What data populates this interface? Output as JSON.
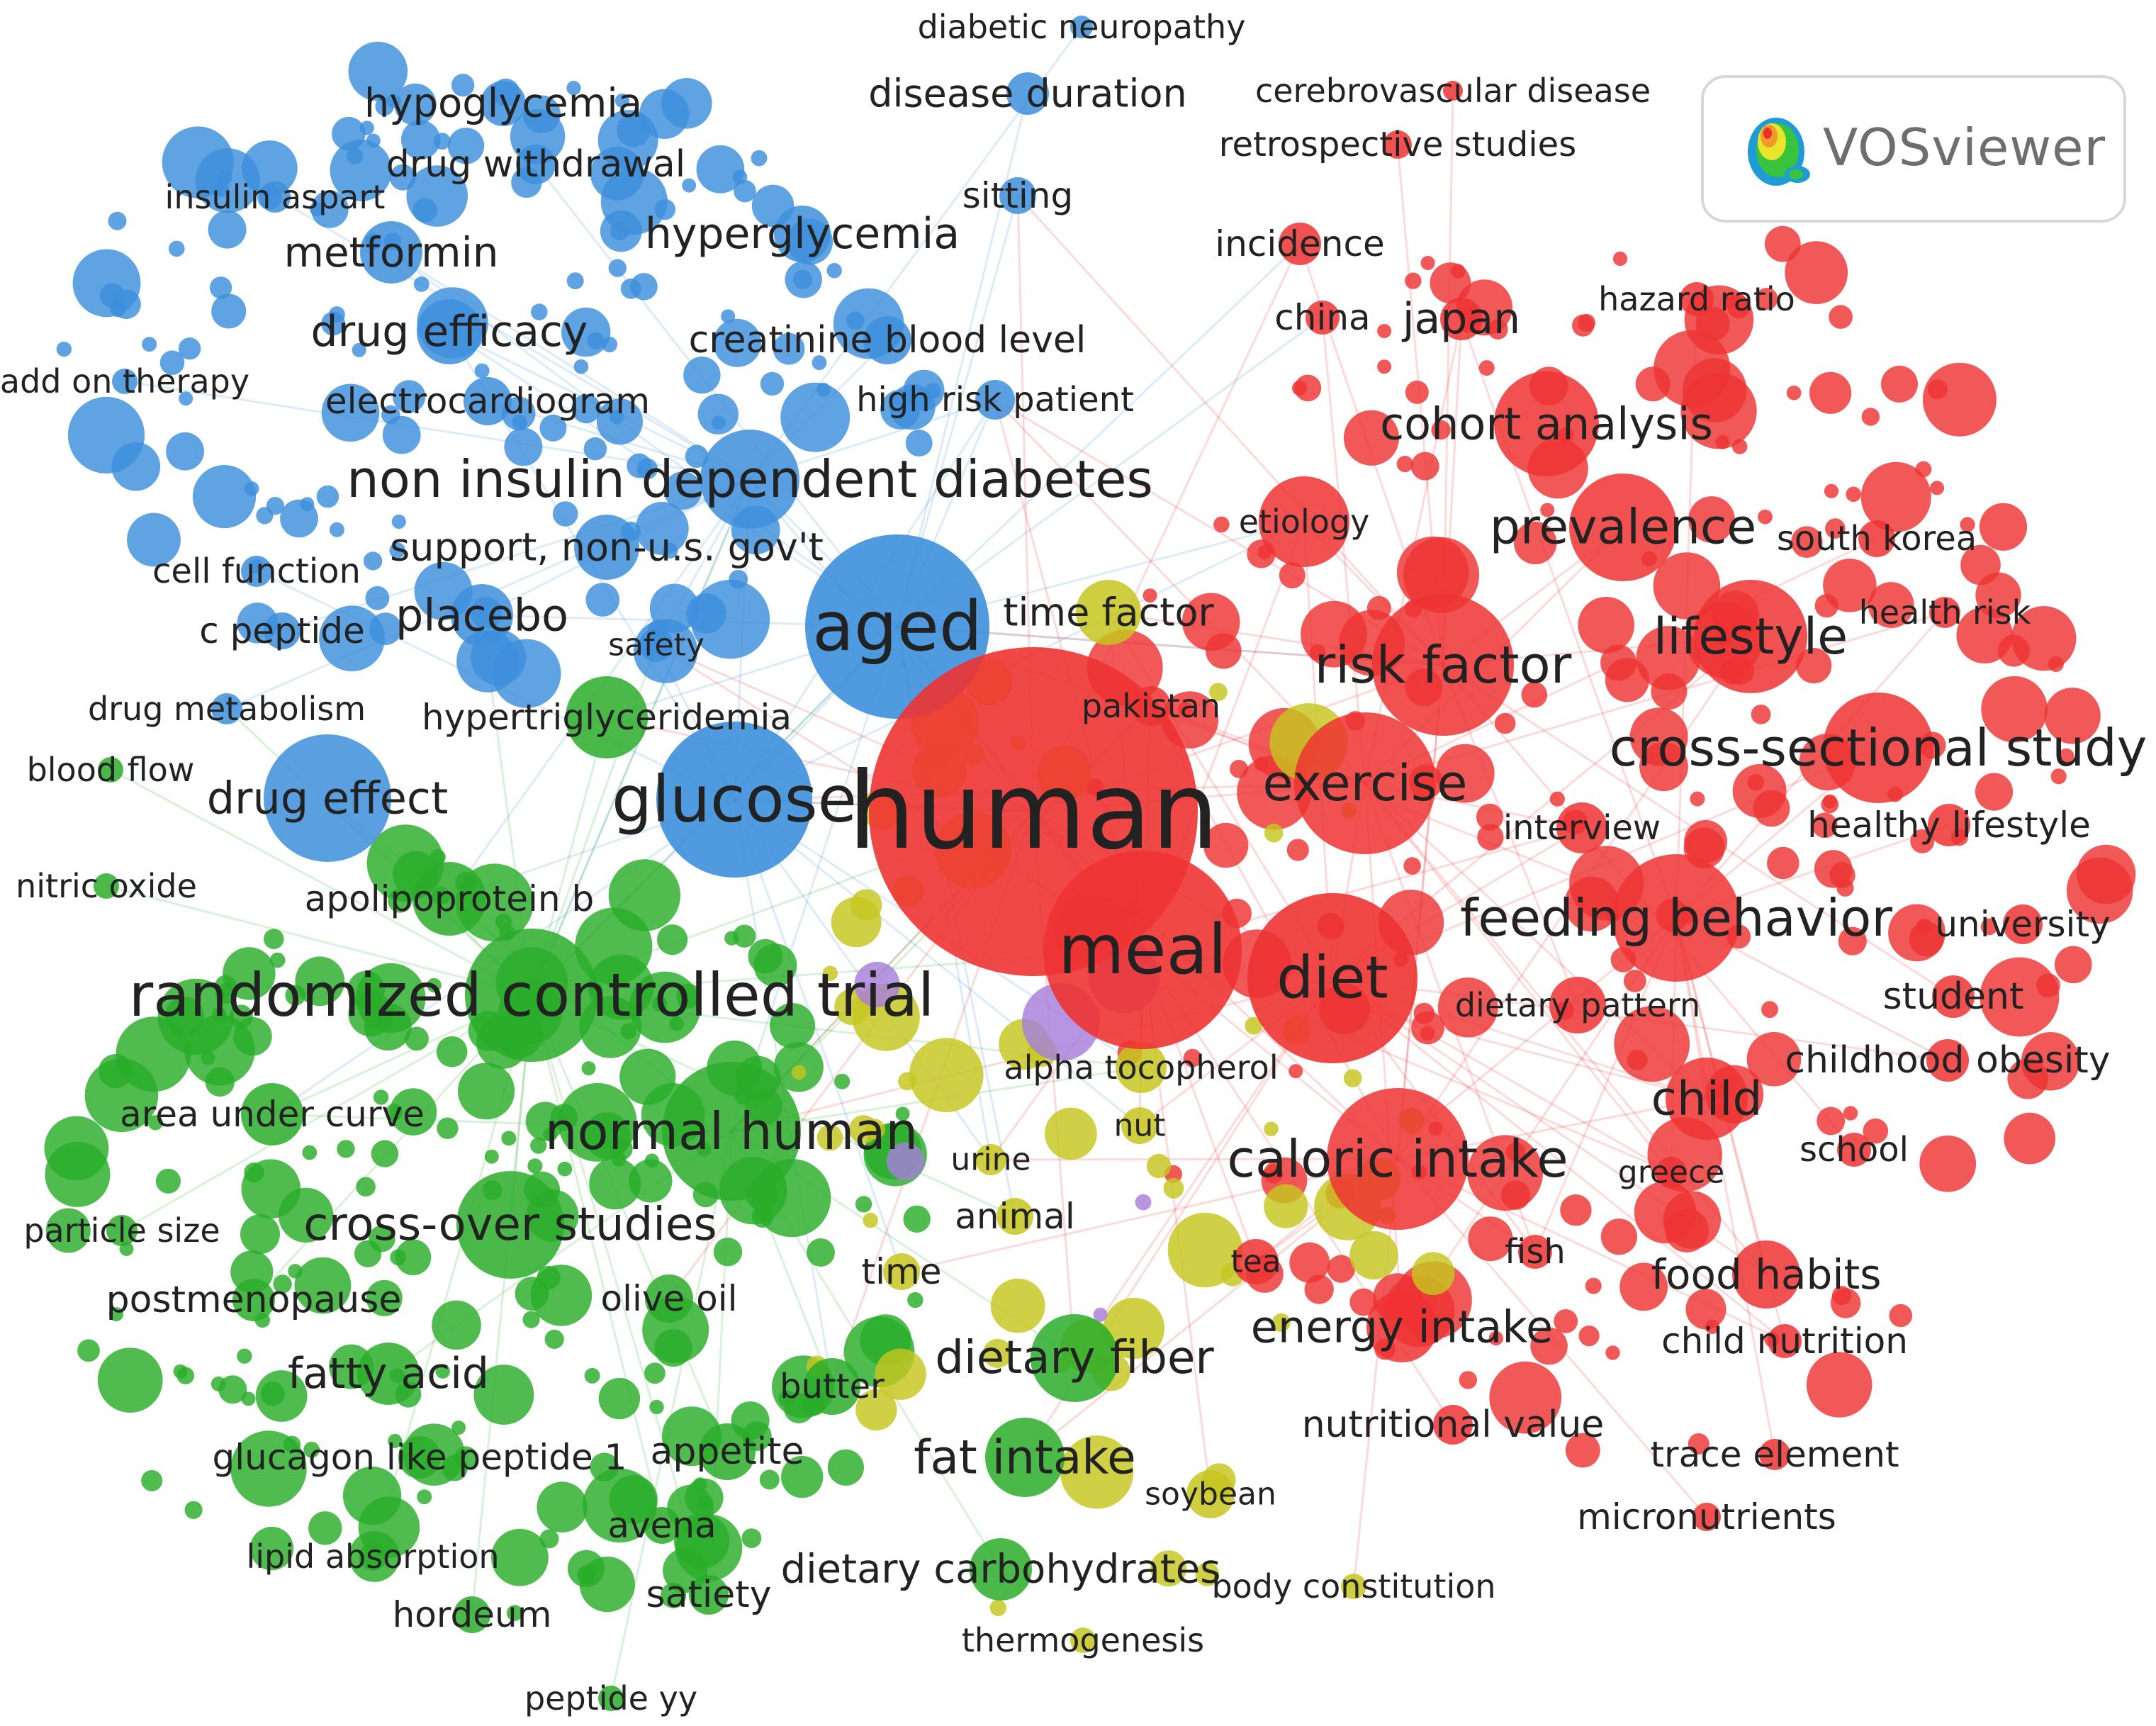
{
  "colors": {
    "red": "#ee3333",
    "blue": "#3d8fdc",
    "green": "#2aad2a",
    "yellow": "#c6c61e",
    "purple": "#a67fdb",
    "label": "#222222"
  },
  "logo": {
    "text": "VOSviewer",
    "icon": "vosviewer-density-logo-icon"
  },
  "terms": [
    {
      "id": "human",
      "label": "human",
      "cluster": "red"
    },
    {
      "id": "meal",
      "label": "meal",
      "cluster": "red"
    },
    {
      "id": "diet",
      "label": "diet",
      "cluster": "red"
    },
    {
      "id": "risk_factor",
      "label": "risk factor",
      "cluster": "red"
    },
    {
      "id": "exercise",
      "label": "exercise",
      "cluster": "red"
    },
    {
      "id": "feeding_behavior",
      "label": "feeding behavior",
      "cluster": "red"
    },
    {
      "id": "caloric_intake",
      "label": "caloric intake",
      "cluster": "red"
    },
    {
      "id": "cross_sectional_study",
      "label": "cross-sectional study",
      "cluster": "red"
    },
    {
      "id": "lifestyle",
      "label": "lifestyle",
      "cluster": "red"
    },
    {
      "id": "prevalence",
      "label": "prevalence",
      "cluster": "red"
    },
    {
      "id": "cohort_analysis",
      "label": "cohort analysis",
      "cluster": "red"
    },
    {
      "id": "japan",
      "label": "japan",
      "cluster": "red"
    },
    {
      "id": "china",
      "label": "china",
      "cluster": "red"
    },
    {
      "id": "incidence",
      "label": "incidence",
      "cluster": "red"
    },
    {
      "id": "etiology",
      "label": "etiology",
      "cluster": "red"
    },
    {
      "id": "child",
      "label": "child",
      "cluster": "red"
    },
    {
      "id": "food_habits",
      "label": "food habits",
      "cluster": "red"
    },
    {
      "id": "energy_intake",
      "label": "energy intake",
      "cluster": "red"
    },
    {
      "id": "dietary_pattern",
      "label": "dietary pattern",
      "cluster": "red"
    },
    {
      "id": "childhood_obesity",
      "label": "childhood obesity",
      "cluster": "red"
    },
    {
      "id": "student",
      "label": "student",
      "cluster": "red"
    },
    {
      "id": "university",
      "label": "university",
      "cluster": "red"
    },
    {
      "id": "healthy_lifestyle",
      "label": "healthy lifestyle",
      "cluster": "red"
    },
    {
      "id": "interview",
      "label": "interview",
      "cluster": "red"
    },
    {
      "id": "south_korea",
      "label": "south korea",
      "cluster": "red"
    },
    {
      "id": "health_risk",
      "label": "health risk",
      "cluster": "red"
    },
    {
      "id": "hazard_ratio",
      "label": "hazard ratio",
      "cluster": "red"
    },
    {
      "id": "school",
      "label": "school",
      "cluster": "red"
    },
    {
      "id": "greece",
      "label": "greece",
      "cluster": "red"
    },
    {
      "id": "fish",
      "label": "fish",
      "cluster": "red"
    },
    {
      "id": "child_nutrition",
      "label": "child nutrition",
      "cluster": "red"
    },
    {
      "id": "trace_element",
      "label": "trace element",
      "cluster": "red"
    },
    {
      "id": "micronutrients",
      "label": "micronutrients",
      "cluster": "red"
    },
    {
      "id": "nutritional_value",
      "label": "nutritional value",
      "cluster": "red"
    },
    {
      "id": "tea",
      "label": "tea",
      "cluster": "red"
    },
    {
      "id": "pakistan",
      "label": "pakistan",
      "cluster": "red"
    },
    {
      "id": "cerebrovascular_disease",
      "label": "cerebrovascular disease",
      "cluster": "red"
    },
    {
      "id": "retrospective_studies",
      "label": "retrospective studies",
      "cluster": "red"
    },
    {
      "id": "aged",
      "label": "aged",
      "cluster": "blue"
    },
    {
      "id": "glucose",
      "label": "glucose",
      "cluster": "blue"
    },
    {
      "id": "non_insulin_dependent_diabetes",
      "label": "non insulin dependent diabetes",
      "cluster": "blue"
    },
    {
      "id": "hyperglycemia",
      "label": "hyperglycemia",
      "cluster": "blue"
    },
    {
      "id": "metformin",
      "label": "metformin",
      "cluster": "blue"
    },
    {
      "id": "drug_efficacy",
      "label": "drug efficacy",
      "cluster": "blue"
    },
    {
      "id": "hypoglycemia",
      "label": "hypoglycemia",
      "cluster": "blue"
    },
    {
      "id": "drug_withdrawal",
      "label": "drug withdrawal",
      "cluster": "blue"
    },
    {
      "id": "insulin_aspart",
      "label": "insulin aspart",
      "cluster": "blue"
    },
    {
      "id": "disease_duration",
      "label": "disease duration",
      "cluster": "blue"
    },
    {
      "id": "diabetic_neuropathy",
      "label": "diabetic neuropathy",
      "cluster": "blue"
    },
    {
      "id": "sitting",
      "label": "sitting",
      "cluster": "blue"
    },
    {
      "id": "creatinine_blood_level",
      "label": "creatinine blood level",
      "cluster": "blue"
    },
    {
      "id": "high_risk_patient",
      "label": "high risk patient",
      "cluster": "blue"
    },
    {
      "id": "electrocardiogram",
      "label": "electrocardiogram",
      "cluster": "blue"
    },
    {
      "id": "add_on_therapy",
      "label": "add on therapy",
      "cluster": "blue"
    },
    {
      "id": "support_non_us",
      "label": "support, non-u.s. gov't",
      "cluster": "blue"
    },
    {
      "id": "placebo",
      "label": "placebo",
      "cluster": "blue"
    },
    {
      "id": "cell_function",
      "label": "cell function",
      "cluster": "blue"
    },
    {
      "id": "c_peptide",
      "label": "c peptide",
      "cluster": "blue"
    },
    {
      "id": "safety",
      "label": "safety",
      "cluster": "blue"
    },
    {
      "id": "drug_metabolism",
      "label": "drug metabolism",
      "cluster": "blue"
    },
    {
      "id": "drug_effect",
      "label": "drug effect",
      "cluster": "blue"
    },
    {
      "id": "time_factor",
      "label": "time factor",
      "cluster": "yellow"
    },
    {
      "id": "alpha_tocopherol",
      "label": "alpha tocopherol",
      "cluster": "yellow"
    },
    {
      "id": "nut",
      "label": "nut",
      "cluster": "yellow"
    },
    {
      "id": "urine",
      "label": "urine",
      "cluster": "yellow"
    },
    {
      "id": "animal",
      "label": "animal",
      "cluster": "yellow"
    },
    {
      "id": "time",
      "label": "time",
      "cluster": "yellow"
    },
    {
      "id": "soybean",
      "label": "soybean",
      "cluster": "yellow"
    },
    {
      "id": "body_constitution",
      "label": "body constitution",
      "cluster": "yellow"
    },
    {
      "id": "thermogenesis",
      "label": "thermogenesis",
      "cluster": "yellow"
    },
    {
      "id": "randomized_controlled_trial",
      "label": "randomized controlled trial",
      "cluster": "green"
    },
    {
      "id": "normal_human",
      "label": "normal human",
      "cluster": "green"
    },
    {
      "id": "cross_over_studies",
      "label": "cross-over studies",
      "cluster": "green"
    },
    {
      "id": "hypertriglyceridemia",
      "label": "hypertriglyceridemia",
      "cluster": "green"
    },
    {
      "id": "apolipoprotein_b",
      "label": "apolipoprotein b",
      "cluster": "green"
    },
    {
      "id": "area_under_curve",
      "label": "area under curve",
      "cluster": "green"
    },
    {
      "id": "particle_size",
      "label": "particle size",
      "cluster": "green"
    },
    {
      "id": "postmenopause",
      "label": "postmenopause",
      "cluster": "green"
    },
    {
      "id": "olive_oil",
      "label": "olive oil",
      "cluster": "green"
    },
    {
      "id": "fatty_acid",
      "label": "fatty acid",
      "cluster": "green"
    },
    {
      "id": "dietary_fiber",
      "label": "dietary fiber",
      "cluster": "green"
    },
    {
      "id": "butter",
      "label": "butter",
      "cluster": "green"
    },
    {
      "id": "glucagon_like_peptide_1",
      "label": "glucagon like peptide 1",
      "cluster": "green"
    },
    {
      "id": "appetite",
      "label": "appetite",
      "cluster": "green"
    },
    {
      "id": "fat_intake",
      "label": "fat intake",
      "cluster": "green"
    },
    {
      "id": "avena",
      "label": "avena",
      "cluster": "green"
    },
    {
      "id": "lipid_absorption",
      "label": "lipid absorption",
      "cluster": "green"
    },
    {
      "id": "satiety",
      "label": "satiety",
      "cluster": "green"
    },
    {
      "id": "dietary_carbohydrates",
      "label": "dietary carbohydrates",
      "cluster": "green"
    },
    {
      "id": "hordeum",
      "label": "hordeum",
      "cluster": "green"
    },
    {
      "id": "peptide_yy",
      "label": "peptide yy",
      "cluster": "green"
    },
    {
      "id": "blood_flow",
      "label": "blood flow",
      "cluster": "green"
    },
    {
      "id": "nitric_oxide",
      "label": "nitric oxide",
      "cluster": "green"
    }
  ]
}
